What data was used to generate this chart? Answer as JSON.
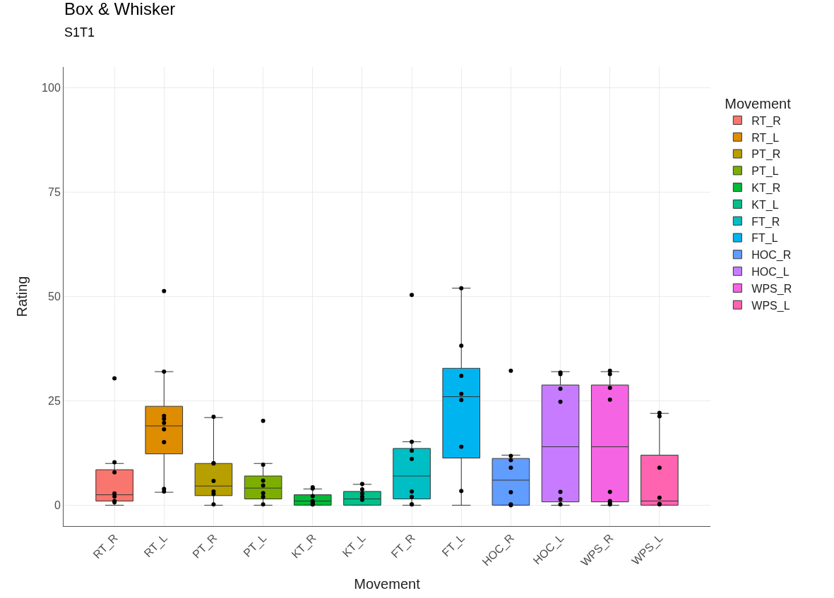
{
  "chart_data": {
    "type": "box",
    "title": "Box & Whisker",
    "subtitle": "S1T1",
    "xlabel": "Movement",
    "ylabel": "Rating",
    "legend_title": "Movement",
    "legend": "right",
    "grid": true,
    "marker": "circle",
    "categories": [
      "RT_R",
      "RT_L",
      "PT_R",
      "PT_L",
      "KT_R",
      "KT_L",
      "FT_R",
      "FT_L",
      "HOC_R",
      "HOC_L",
      "WPS_R",
      "WPS_L"
    ],
    "ylim": [
      -5,
      105
    ],
    "yticks": [
      0,
      25,
      50,
      75,
      100
    ],
    "series": [
      {
        "name": "RT_R",
        "color": "#f8766d",
        "x": [
          "RT_R"
        ],
        "boxes": [
          {
            "low": 0,
            "q1": 1.0,
            "median": 2.5,
            "q3": 8.5,
            "high": 10
          }
        ]
      },
      {
        "name": "RT_L",
        "color": "#de8c00",
        "x": [
          "RT_L"
        ],
        "boxes": [
          {
            "low": 3.1,
            "q1": 12.3,
            "median": 19,
            "q3": 23.7,
            "high": 32
          }
        ]
      },
      {
        "name": "PT_R",
        "color": "#b79f00",
        "x": [
          "PT_R"
        ],
        "boxes": [
          {
            "low": 0,
            "q1": 2.3,
            "median": 4.6,
            "q3": 10,
            "high": 21
          }
        ]
      },
      {
        "name": "PT_L",
        "color": "#7cae00",
        "x": [
          "PT_L"
        ],
        "boxes": [
          {
            "low": 0,
            "q1": 1.5,
            "median": 4.1,
            "q3": 7,
            "high": 10
          }
        ]
      },
      {
        "name": "KT_R",
        "color": "#00ba38",
        "x": [
          "KT_R"
        ],
        "boxes": [
          {
            "low": 0,
            "q1": 0,
            "median": 1.0,
            "q3": 2.5,
            "high": 3.9
          }
        ]
      },
      {
        "name": "KT_L",
        "color": "#00c08b",
        "x": [
          "KT_L"
        ],
        "boxes": [
          {
            "low": 0,
            "q1": 0,
            "median": 1.5,
            "q3": 3.3,
            "high": 5
          }
        ]
      },
      {
        "name": "FT_R",
        "color": "#00bfc4",
        "x": [
          "FT_R"
        ],
        "boxes": [
          {
            "low": 0,
            "q1": 1.5,
            "median": 7,
            "q3": 13.6,
            "high": 15.2
          }
        ]
      },
      {
        "name": "FT_L",
        "color": "#00b4f0",
        "x": [
          "FT_L"
        ],
        "boxes": [
          {
            "low": 0,
            "q1": 11.3,
            "median": 26,
            "q3": 32.8,
            "high": 52
          }
        ]
      },
      {
        "name": "HOC_R",
        "color": "#619cff",
        "x": [
          "HOC_R"
        ],
        "boxes": [
          {
            "low": 0,
            "q1": 0,
            "median": 6,
            "q3": 11.2,
            "high": 12
          }
        ]
      },
      {
        "name": "HOC_L",
        "color": "#c77cff",
        "x": [
          "HOC_L"
        ],
        "boxes": [
          {
            "low": 0,
            "q1": 0.8,
            "median": 14,
            "q3": 28.8,
            "high": 32
          }
        ]
      },
      {
        "name": "WPS_R",
        "color": "#f564e3",
        "x": [
          "WPS_R"
        ],
        "boxes": [
          {
            "low": 0,
            "q1": 0.8,
            "median": 14,
            "q3": 28.8,
            "high": 32
          }
        ]
      },
      {
        "name": "WPS_L",
        "color": "#ff64b0",
        "x": [
          "WPS_L"
        ],
        "boxes": [
          {
            "low": 0,
            "q1": 0,
            "median": 1.0,
            "q3": 12,
            "high": 22
          }
        ]
      },
      {
        "type": "scatter",
        "color": "#000000",
        "x": [
          "RT_R",
          "RT_R",
          "RT_R",
          "RT_R",
          "RT_R",
          "RT_R",
          "RT_R",
          "RT_L",
          "RT_L",
          "RT_L",
          "RT_L",
          "RT_L",
          "RT_L",
          "RT_L",
          "RT_L",
          "RT_L",
          "PT_R",
          "PT_R",
          "PT_R",
          "PT_R",
          "PT_R",
          "PT_R",
          "PT_R",
          "PT_L",
          "PT_L",
          "PT_L",
          "PT_L",
          "PT_L",
          "PT_L",
          "PT_L",
          "KT_R",
          "KT_R",
          "KT_R",
          "KT_R",
          "KT_R",
          "KT_R",
          "KT_R",
          "KT_R",
          "KT_L",
          "KT_L",
          "KT_L",
          "KT_L",
          "KT_L",
          "FT_R",
          "FT_R",
          "FT_R",
          "FT_R",
          "FT_R",
          "FT_R",
          "FT_R",
          "FT_R",
          "FT_L",
          "FT_L",
          "FT_L",
          "FT_L",
          "FT_L",
          "FT_L",
          "FT_L",
          "HOC_R",
          "HOC_R",
          "HOC_R",
          "HOC_R",
          "HOC_R",
          "HOC_R",
          "HOC_R",
          "HOC_L",
          "HOC_L",
          "HOC_L",
          "HOC_L",
          "HOC_L",
          "HOC_L",
          "HOC_L",
          "WPS_R",
          "WPS_R",
          "WPS_R",
          "WPS_R",
          "WPS_R",
          "WPS_R",
          "WPS_R",
          "WPS_R",
          "WPS_L",
          "WPS_L",
          "WPS_L",
          "WPS_L",
          "WPS_L",
          "WPS_L"
        ],
        "values": [
          30.4,
          10.3,
          7.9,
          2.8,
          2.1,
          1.0,
          0.7,
          51.3,
          32,
          21.4,
          20.7,
          19.7,
          18.2,
          15.1,
          3.9,
          3.3,
          21.2,
          10.1,
          10,
          5.8,
          3.3,
          2.7,
          0.2,
          20.2,
          9.7,
          5.9,
          4.7,
          2.9,
          2.0,
          0.2,
          4.3,
          4.0,
          2.2,
          1.0,
          0.7,
          0.4,
          0.2,
          0.2,
          5.1,
          3.8,
          2.8,
          2.0,
          1.3,
          50.4,
          15.2,
          13.1,
          11.1,
          3.3,
          2.0,
          0.2,
          0.2,
          52,
          38.2,
          31,
          26.7,
          25.2,
          14,
          3.4,
          32.2,
          11.8,
          10.8,
          9,
          3.1,
          0.2,
          0,
          31.8,
          31.4,
          27.9,
          24.8,
          3.2,
          1.4,
          0.2,
          32.2,
          31.4,
          28.1,
          25.3,
          3.2,
          1.0,
          0.5,
          0.2,
          22.1,
          21.3,
          9,
          1.8,
          0.3,
          0.2
        ]
      }
    ]
  }
}
